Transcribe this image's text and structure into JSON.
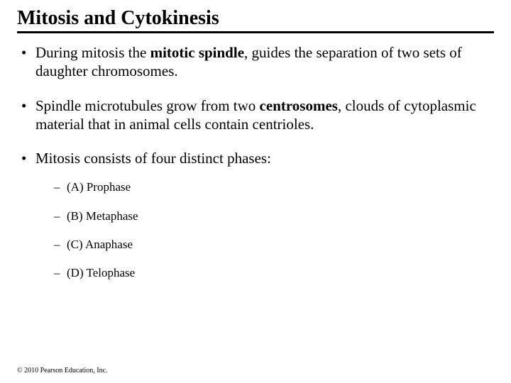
{
  "title": "Mitosis and Cytokinesis",
  "bullets": [
    {
      "segments": [
        {
          "t": "During mitosis the ",
          "b": false
        },
        {
          "t": "mitotic spindle",
          "b": true
        },
        {
          "t": ", guides the separation of two sets of daughter chromosomes.",
          "b": false
        }
      ]
    },
    {
      "segments": [
        {
          "t": "Spindle microtubules grow from two ",
          "b": false
        },
        {
          "t": "centrosomes",
          "b": true
        },
        {
          "t": ", clouds of cytoplasmic material that in animal cells contain centrioles.",
          "b": false
        }
      ]
    },
    {
      "segments": [
        {
          "t": "Mitosis consists of four distinct phases:",
          "b": false
        }
      ],
      "sub": [
        "(A) Prophase",
        "(B) Metaphase",
        "(C) Anaphase",
        "(D) Telophase"
      ]
    }
  ],
  "footer": "© 2010 Pearson Education, Inc.",
  "colors": {
    "text": "#000000",
    "background": "#ffffff",
    "rule": "#000000"
  },
  "typography": {
    "family": "Times New Roman",
    "title_fontsize": 28,
    "title_weight": "bold",
    "bullet_fontsize": 21,
    "sub_fontsize": 17,
    "footer_fontsize": 10
  }
}
